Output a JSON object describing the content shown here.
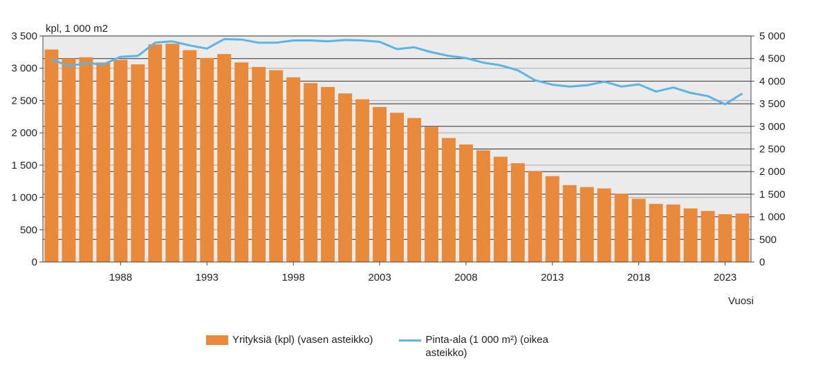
{
  "chart_data": {
    "type": "bar",
    "left_unit_label": "kpl, 1 000 m2",
    "xlabel": "Vuosi",
    "x_tick_labels": [
      "1988",
      "1993",
      "1998",
      "2003",
      "2008",
      "2013",
      "2018",
      "2023"
    ],
    "categories": [
      1984,
      1985,
      1986,
      1987,
      1988,
      1989,
      1990,
      1991,
      1992,
      1993,
      1994,
      1995,
      1996,
      1997,
      1998,
      1999,
      2000,
      2001,
      2002,
      2003,
      2004,
      2005,
      2006,
      2007,
      2008,
      2009,
      2010,
      2011,
      2012,
      2013,
      2014,
      2015,
      2016,
      2017,
      2018,
      2019,
      2020,
      2021,
      2022,
      2023,
      2024
    ],
    "ylim_left": [
      0,
      3500
    ],
    "yticks_left": [
      0,
      500,
      1000,
      1500,
      2000,
      2500,
      3000,
      3500
    ],
    "ytick_labels_left": [
      "0",
      "500",
      "1 000",
      "1 500",
      "2 000",
      "2 500",
      "3 000",
      "3 500"
    ],
    "ylim_right": [
      0,
      5000
    ],
    "yticks_right": [
      0,
      500,
      1000,
      1500,
      2000,
      2500,
      3000,
      3500,
      4000,
      4500,
      5000
    ],
    "ytick_labels_right": [
      "0",
      "500",
      "1 000",
      "1 500",
      "2 000",
      "2 500",
      "3 000",
      "3 500",
      "4 000",
      "4 500",
      "5 000"
    ],
    "grid": true,
    "legend_position": "bottom",
    "series": [
      {
        "name": "Yrityksiä (kpl) (vasen asteikko)",
        "type": "bar",
        "axis": "left",
        "color": "#e88a3a",
        "values": [
          3290,
          3150,
          3170,
          3090,
          3130,
          3060,
          3370,
          3380,
          3280,
          3160,
          3220,
          3090,
          3020,
          2970,
          2860,
          2770,
          2710,
          2610,
          2520,
          2400,
          2310,
          2230,
          2090,
          1920,
          1820,
          1730,
          1630,
          1530,
          1410,
          1330,
          1190,
          1160,
          1140,
          1060,
          980,
          900,
          890,
          830,
          790,
          740,
          750
        ]
      },
      {
        "name": "Pinta-ala (1 000 m²) (oikea asteikko)",
        "type": "line",
        "axis": "right",
        "color": "#5ab4e5",
        "values": [
          4490,
          4330,
          4400,
          4370,
          4540,
          4560,
          4850,
          4880,
          4790,
          4720,
          4930,
          4920,
          4850,
          4850,
          4900,
          4900,
          4880,
          4910,
          4900,
          4870,
          4710,
          4750,
          4640,
          4560,
          4510,
          4410,
          4350,
          4240,
          4020,
          3920,
          3880,
          3910,
          3990,
          3880,
          3930,
          3770,
          3860,
          3740,
          3670,
          3490,
          3730
        ]
      }
    ]
  }
}
